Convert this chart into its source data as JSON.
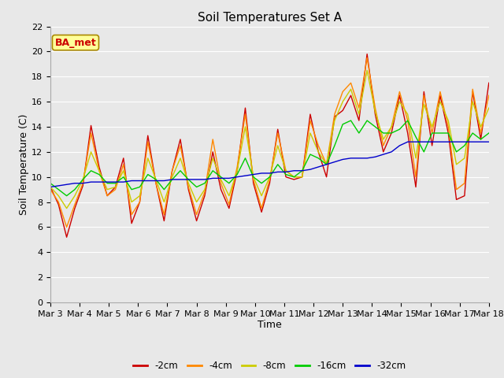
{
  "title": "Soil Temperatures Set A",
  "xlabel": "Time",
  "ylabel": "Soil Temperature (C)",
  "annotation": "BA_met",
  "ylim": [
    0,
    22
  ],
  "yticks": [
    0,
    2,
    4,
    6,
    8,
    10,
    12,
    14,
    16,
    18,
    20,
    22
  ],
  "xtick_labels": [
    "Mar 3",
    "Mar 4",
    "Mar 5",
    "Mar 6",
    "Mar 7",
    "Mar 8",
    "Mar 9",
    "Mar 10",
    "Mar 11",
    "Mar 12",
    "Mar 13",
    "Mar 14",
    "Mar 15",
    "Mar 16",
    "Mar 17",
    "Mar 18"
  ],
  "series_labels": [
    "-2cm",
    "-4cm",
    "-8cm",
    "-16cm",
    "-32cm"
  ],
  "series_colors": [
    "#cc0000",
    "#ff8800",
    "#cccc00",
    "#00cc00",
    "#0000cc"
  ],
  "fig_facecolor": "#e8e8e8",
  "ax_facecolor": "#e8e8e8",
  "grid_color": "#ffffff",
  "series": {
    "-2cm": [
      9.2,
      7.8,
      5.2,
      7.5,
      9.3,
      14.1,
      10.8,
      8.5,
      9.2,
      11.5,
      6.3,
      8.0,
      13.3,
      9.5,
      6.5,
      10.5,
      13.0,
      9.0,
      6.5,
      8.5,
      12.0,
      9.0,
      7.5,
      10.5,
      15.5,
      9.5,
      7.2,
      9.5,
      13.8,
      10.0,
      9.8,
      10.0,
      15.0,
      12.0,
      10.0,
      14.8,
      15.3,
      16.5,
      14.5,
      19.8,
      15.0,
      12.0,
      13.5,
      16.5,
      13.5,
      9.2,
      16.8,
      12.5,
      16.5,
      13.5,
      8.2,
      8.5,
      16.8,
      13.0,
      17.5
    ],
    "-4cm": [
      9.0,
      8.0,
      6.0,
      7.8,
      9.5,
      13.5,
      10.5,
      8.5,
      9.0,
      11.0,
      7.0,
      8.0,
      12.8,
      9.5,
      7.0,
      10.5,
      12.5,
      9.2,
      7.0,
      8.8,
      13.0,
      9.5,
      7.8,
      10.8,
      15.0,
      9.8,
      7.5,
      9.8,
      13.5,
      10.5,
      10.0,
      10.0,
      14.5,
      12.5,
      11.0,
      15.0,
      16.8,
      17.5,
      15.5,
      19.5,
      15.5,
      12.5,
      14.0,
      16.8,
      14.5,
      10.0,
      16.5,
      13.5,
      16.8,
      14.0,
      9.0,
      9.5,
      17.0,
      13.5,
      16.5
    ],
    "-8cm": [
      9.2,
      8.5,
      7.5,
      8.5,
      9.8,
      12.0,
      10.5,
      9.0,
      9.2,
      10.5,
      8.0,
      8.5,
      11.5,
      9.8,
      8.0,
      10.0,
      11.5,
      9.5,
      8.0,
      9.0,
      11.5,
      9.8,
      8.5,
      10.5,
      14.0,
      10.0,
      8.5,
      10.0,
      12.5,
      10.5,
      10.0,
      10.0,
      13.5,
      12.0,
      11.0,
      14.5,
      16.0,
      17.0,
      15.0,
      18.5,
      15.2,
      13.0,
      14.0,
      16.0,
      15.0,
      11.5,
      15.8,
      14.0,
      16.0,
      14.5,
      11.0,
      11.5,
      16.0,
      14.0,
      15.5
    ],
    "-16cm": [
      9.5,
      9.0,
      8.5,
      9.0,
      9.8,
      10.5,
      10.2,
      9.5,
      9.5,
      10.0,
      9.0,
      9.2,
      10.2,
      9.8,
      9.0,
      9.8,
      10.5,
      9.8,
      9.2,
      9.5,
      10.5,
      10.0,
      9.5,
      10.2,
      11.5,
      10.0,
      9.5,
      10.0,
      11.0,
      10.2,
      10.0,
      10.5,
      11.8,
      11.5,
      11.0,
      12.5,
      14.2,
      14.5,
      13.5,
      14.5,
      14.0,
      13.5,
      13.5,
      13.8,
      14.5,
      13.2,
      12.0,
      13.5,
      13.5,
      13.5,
      12.0,
      12.5,
      13.5,
      13.0,
      13.5
    ],
    "-32cm": [
      9.2,
      9.3,
      9.4,
      9.5,
      9.5,
      9.6,
      9.6,
      9.6,
      9.6,
      9.6,
      9.7,
      9.7,
      9.7,
      9.7,
      9.7,
      9.8,
      9.8,
      9.8,
      9.8,
      9.8,
      9.9,
      9.9,
      9.9,
      10.0,
      10.1,
      10.2,
      10.3,
      10.3,
      10.4,
      10.4,
      10.5,
      10.5,
      10.6,
      10.8,
      11.0,
      11.2,
      11.4,
      11.5,
      11.5,
      11.5,
      11.6,
      11.8,
      12.0,
      12.5,
      12.8,
      12.8,
      12.8,
      12.8,
      12.8,
      12.8,
      12.8,
      12.8,
      12.8,
      12.8,
      12.8
    ]
  },
  "n_points": 55,
  "title_fontsize": 11,
  "axis_label_fontsize": 9,
  "tick_fontsize": 8,
  "linewidth": 1.0
}
